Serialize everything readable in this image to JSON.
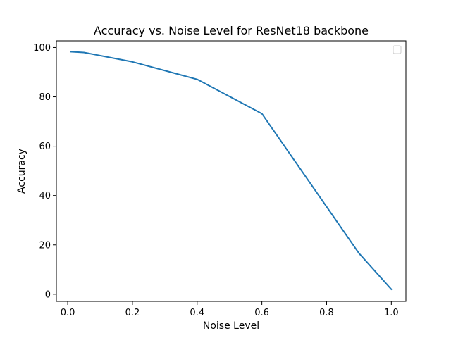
{
  "chart_data": {
    "type": "line",
    "title": "Accuracy vs. Noise Level for ResNet18 backbone",
    "xlabel": "Noise Level",
    "ylabel": "Accuracy",
    "xlim": [
      -0.035,
      1.045
    ],
    "ylim": [
      -2.9,
      102.7
    ],
    "xticks": [
      0.0,
      0.2,
      0.4,
      0.6,
      0.8,
      1.0
    ],
    "xtick_labels": [
      "0.0",
      "0.2",
      "0.4",
      "0.6",
      "0.8",
      "1.0"
    ],
    "yticks": [
      0,
      20,
      40,
      60,
      80,
      100
    ],
    "ytick_labels": [
      "0",
      "20",
      "40",
      "60",
      "80",
      "100"
    ],
    "grid": false,
    "legend": {
      "placement": "upper right",
      "entries": []
    },
    "series": [
      {
        "color": "#1f77b4",
        "x": [
          0.01,
          0.05,
          0.2,
          0.4,
          0.6,
          0.9,
          1.0
        ],
        "y": [
          98.3,
          98.0,
          94.2,
          87.1,
          73.2,
          16.6,
          2.0
        ]
      }
    ]
  }
}
